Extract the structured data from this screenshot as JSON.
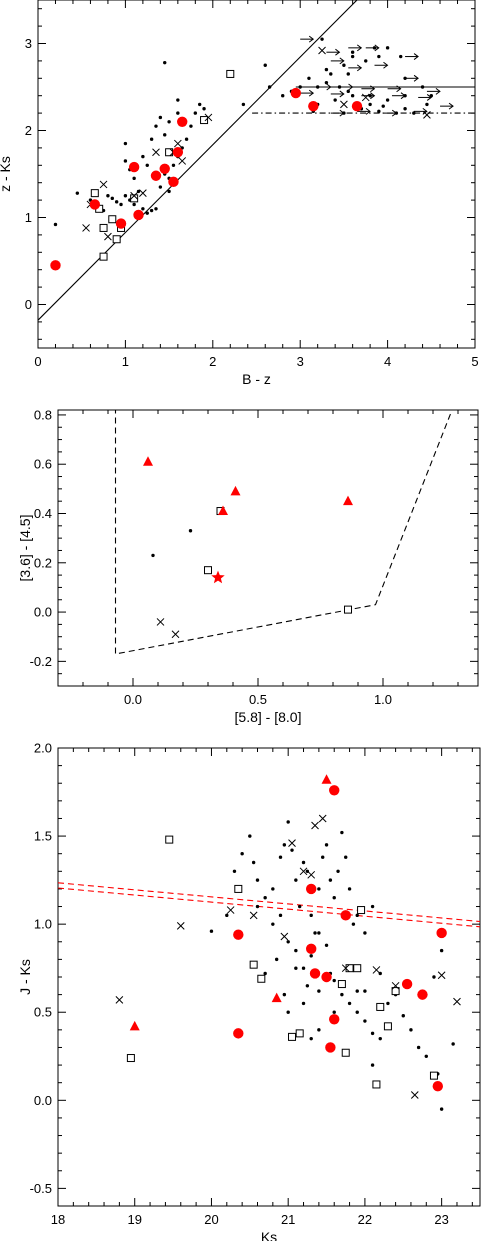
{
  "colors": {
    "ink": "#000000",
    "highlight": "#ff0000",
    "background": "#ffffff"
  },
  "chart_data": [
    {
      "type": "scatter",
      "xlabel": "B - z",
      "ylabel": "z - Ks",
      "xlim": [
        0,
        5
      ],
      "ylim": [
        -0.5,
        3.5
      ],
      "xticks": [
        "0",
        "1",
        "2",
        "3",
        "4",
        "5"
      ],
      "yticks": [
        "0",
        "1",
        "2",
        "3"
      ],
      "grid": false,
      "dots": [
        [
          0.2,
          0.92
        ],
        [
          0.45,
          1.28
        ],
        [
          0.6,
          1.2
        ],
        [
          0.7,
          1.1
        ],
        [
          0.75,
          1.08
        ],
        [
          0.8,
          1.25
        ],
        [
          0.85,
          1.22
        ],
        [
          0.9,
          1.18
        ],
        [
          0.95,
          1.15
        ],
        [
          1.0,
          1.25
        ],
        [
          1.05,
          1.2
        ],
        [
          1.1,
          1.15
        ],
        [
          1.15,
          1.3
        ],
        [
          1.2,
          1.1
        ],
        [
          1.25,
          1.05
        ],
        [
          1.3,
          1.08
        ],
        [
          1.35,
          1.1
        ],
        [
          1.4,
          1.35
        ],
        [
          1.45,
          1.5
        ],
        [
          1.5,
          1.45
        ],
        [
          1.55,
          1.6
        ],
        [
          1.6,
          1.7
        ],
        [
          1.65,
          1.8
        ],
        [
          1.7,
          1.9
        ],
        [
          1.75,
          2.05
        ],
        [
          1.8,
          2.2
        ],
        [
          1.85,
          2.3
        ],
        [
          1.9,
          2.25
        ],
        [
          1.2,
          1.7
        ],
        [
          1.3,
          1.9
        ],
        [
          1.0,
          1.85
        ],
        [
          1.5,
          2.1
        ],
        [
          1.6,
          2.2
        ],
        [
          1.45,
          1.95
        ],
        [
          1.4,
          2.15
        ],
        [
          1.35,
          2.05
        ],
        [
          1.1,
          1.45
        ],
        [
          1.05,
          1.55
        ],
        [
          1.25,
          1.6
        ],
        [
          1.5,
          1.3
        ],
        [
          1.0,
          1.65
        ],
        [
          1.45,
          2.78
        ],
        [
          1.6,
          2.35
        ],
        [
          2.6,
          2.75
        ],
        [
          2.35,
          2.3
        ],
        [
          2.65,
          2.5
        ],
        [
          2.8,
          2.4
        ],
        [
          2.9,
          2.45
        ],
        [
          3.0,
          2.5
        ],
        [
          3.1,
          2.6
        ],
        [
          3.2,
          2.5
        ],
        [
          3.3,
          2.7
        ],
        [
          3.35,
          2.65
        ],
        [
          3.45,
          2.5
        ],
        [
          3.55,
          2.45
        ],
        [
          3.4,
          2.35
        ],
        [
          3.6,
          2.4
        ],
        [
          3.3,
          2.55
        ],
        [
          3.2,
          2.3
        ],
        [
          3.15,
          2.22
        ],
        [
          3.5,
          2.2
        ],
        [
          3.7,
          2.25
        ],
        [
          3.8,
          2.3
        ],
        [
          4.0,
          2.35
        ],
        [
          4.2,
          2.4
        ],
        [
          4.1,
          2.2
        ],
        [
          3.9,
          2.22
        ],
        [
          3.55,
          2.65
        ],
        [
          3.5,
          2.75
        ],
        [
          3.25,
          3.05
        ],
        [
          3.6,
          2.9
        ],
        [
          3.9,
          2.85
        ],
        [
          4.15,
          2.85
        ],
        [
          4.2,
          2.6
        ],
        [
          4.4,
          2.5
        ],
        [
          4.5,
          2.4
        ],
        [
          4.45,
          2.3
        ],
        [
          3.6,
          2.85
        ],
        [
          3.75,
          2.8
        ],
        [
          3.85,
          2.95
        ],
        [
          4.0,
          2.95
        ],
        [
          3.8,
          2.4
        ],
        [
          4.3,
          2.2
        ],
        [
          4.2,
          2.25
        ],
        [
          3.95,
          2.28
        ]
      ],
      "squares": [
        [
          0.65,
          1.28
        ],
        [
          0.7,
          1.1
        ],
        [
          0.75,
          0.55
        ],
        [
          0.75,
          0.88
        ],
        [
          0.85,
          0.98
        ],
        [
          0.9,
          0.75
        ],
        [
          0.95,
          0.88
        ],
        [
          1.1,
          1.22
        ],
        [
          1.5,
          1.75
        ],
        [
          1.9,
          2.12
        ],
        [
          2.2,
          2.65
        ]
      ],
      "crosses": [
        [
          0.6,
          1.15
        ],
        [
          0.75,
          1.38
        ],
        [
          0.8,
          0.78
        ],
        [
          0.55,
          0.88
        ],
        [
          1.1,
          1.25
        ],
        [
          1.2,
          1.28
        ],
        [
          1.35,
          1.75
        ],
        [
          1.55,
          1.75
        ],
        [
          1.6,
          1.85
        ],
        [
          1.65,
          1.65
        ],
        [
          1.95,
          2.15
        ],
        [
          3.25,
          2.92
        ],
        [
          3.5,
          2.3
        ],
        [
          3.75,
          2.38
        ],
        [
          4.45,
          2.18
        ]
      ],
      "red_circles": [
        [
          0.2,
          0.45
        ],
        [
          0.65,
          1.15
        ],
        [
          0.95,
          0.93
        ],
        [
          1.1,
          1.58
        ],
        [
          1.15,
          1.03
        ],
        [
          1.35,
          1.48
        ],
        [
          1.45,
          1.56
        ],
        [
          1.55,
          1.41
        ],
        [
          1.6,
          1.75
        ],
        [
          1.65,
          2.1
        ],
        [
          2.95,
          2.43
        ],
        [
          3.15,
          2.28
        ],
        [
          3.65,
          2.28
        ]
      ],
      "lower_limit_arrows": [
        [
          3.0,
          3.05
        ],
        [
          3.3,
          2.9
        ],
        [
          3.55,
          2.95
        ],
        [
          3.75,
          2.95
        ],
        [
          4.2,
          2.85
        ],
        [
          3.35,
          2.8
        ],
        [
          3.55,
          2.72
        ],
        [
          3.85,
          2.75
        ],
        [
          4.2,
          2.6
        ],
        [
          3.2,
          2.5
        ],
        [
          3.45,
          2.5
        ],
        [
          3.7,
          2.48
        ],
        [
          4.0,
          2.48
        ],
        [
          4.45,
          2.45
        ],
        [
          3.35,
          2.42
        ],
        [
          3.7,
          2.4
        ],
        [
          4.05,
          2.4
        ],
        [
          4.35,
          2.38
        ],
        [
          3.0,
          2.43
        ],
        [
          4.6,
          2.28
        ],
        [
          3.35,
          2.2
        ],
        [
          3.65,
          2.22
        ],
        [
          3.95,
          2.2
        ],
        [
          4.3,
          2.22
        ]
      ],
      "lines": [
        {
          "style": "solid",
          "points": [
            [
              0,
              -0.18
            ],
            [
              3.65,
              3.5
            ]
          ]
        },
        {
          "style": "solid",
          "points": [
            [
              2.95,
              2.5
            ],
            [
              5,
              2.5
            ]
          ]
        },
        {
          "style": "dashdot",
          "points": [
            [
              2.45,
              2.2
            ],
            [
              5,
              2.2
            ]
          ]
        }
      ]
    },
    {
      "type": "scatter",
      "xlabel": "[5.8] - [8.0]",
      "ylabel": "[3.6] - [4.5]",
      "xlim": [
        -0.3,
        1.38
      ],
      "ylim": [
        -0.3,
        0.82
      ],
      "xticks": [
        "0.0",
        "0.5",
        "1.0"
      ],
      "yticks": [
        "-0.2",
        "0.0",
        "0.2",
        "0.4",
        "0.6",
        "0.8"
      ],
      "grid": false,
      "dots": [
        [
          0.08,
          0.23
        ],
        [
          0.23,
          0.33
        ]
      ],
      "squares": [
        [
          0.3,
          0.17
        ],
        [
          0.35,
          0.41
        ],
        [
          0.86,
          0.01
        ]
      ],
      "crosses": [
        [
          0.11,
          -0.04
        ],
        [
          0.17,
          -0.09
        ]
      ],
      "red_triangles": [
        [
          0.06,
          0.61
        ],
        [
          0.36,
          0.41
        ],
        [
          0.41,
          0.49
        ],
        [
          0.86,
          0.45
        ]
      ],
      "red_stars": [
        [
          0.34,
          0.14
        ]
      ],
      "lines": [
        {
          "style": "dashed",
          "points": [
            [
              -0.07,
              0.83
            ],
            [
              -0.07,
              -0.17
            ],
            [
              0.97,
              0.03
            ],
            [
              1.28,
              0.83
            ]
          ]
        }
      ]
    },
    {
      "type": "scatter",
      "xlabel": "Ks",
      "ylabel": "J - Ks",
      "xlim": [
        18,
        23.5
      ],
      "ylim": [
        -0.6,
        2.0
      ],
      "xticks": [
        "18",
        "19",
        "20",
        "21",
        "22",
        "23"
      ],
      "yticks": [
        "-0.5",
        "0.0",
        "0.5",
        "1.0",
        "1.5",
        "2.0"
      ],
      "grid": false,
      "dots": [
        [
          20.0,
          0.96
        ],
        [
          20.2,
          1.05
        ],
        [
          20.3,
          1.3
        ],
        [
          20.4,
          1.4
        ],
        [
          20.5,
          1.5
        ],
        [
          20.55,
          1.35
        ],
        [
          20.6,
          1.25
        ],
        [
          20.7,
          1.15
        ],
        [
          20.8,
          1.2
        ],
        [
          20.9,
          1.38
        ],
        [
          20.95,
          1.45
        ],
        [
          21.0,
          1.58
        ],
        [
          21.05,
          1.42
        ],
        [
          21.1,
          1.25
        ],
        [
          21.15,
          1.1
        ],
        [
          21.2,
          1.35
        ],
        [
          21.25,
          1.3
        ],
        [
          21.3,
          1.05
        ],
        [
          21.35,
          0.95
        ],
        [
          21.4,
          1.2
        ],
        [
          21.45,
          1.38
        ],
        [
          21.5,
          1.45
        ],
        [
          21.55,
          1.25
        ],
        [
          21.6,
          1.15
        ],
        [
          21.65,
          1.3
        ],
        [
          21.7,
          1.52
        ],
        [
          21.75,
          1.38
        ],
        [
          21.8,
          1.2
        ],
        [
          21.85,
          1.0
        ],
        [
          21.9,
          1.05
        ],
        [
          22.0,
          0.95
        ],
        [
          22.1,
          1.1
        ],
        [
          21.0,
          0.9
        ],
        [
          21.1,
          0.85
        ],
        [
          21.2,
          0.75
        ],
        [
          21.3,
          0.82
        ],
        [
          21.4,
          0.95
        ],
        [
          21.5,
          0.88
        ],
        [
          21.55,
          0.72
        ],
        [
          21.6,
          0.68
        ],
        [
          21.7,
          0.6
        ],
        [
          21.8,
          0.55
        ],
        [
          21.9,
          0.5
        ],
        [
          22.0,
          0.45
        ],
        [
          22.1,
          0.38
        ],
        [
          22.2,
          0.35
        ],
        [
          22.3,
          0.55
        ],
        [
          22.4,
          0.6
        ],
        [
          22.5,
          0.48
        ],
        [
          22.6,
          0.4
        ],
        [
          22.7,
          0.3
        ],
        [
          22.8,
          0.25
        ],
        [
          22.9,
          0.7
        ],
        [
          23.0,
          0.85
        ],
        [
          22.95,
          0.15
        ],
        [
          23.0,
          -0.05
        ],
        [
          23.15,
          0.32
        ],
        [
          22.1,
          0.2
        ],
        [
          21.0,
          0.5
        ],
        [
          20.95,
          0.6
        ],
        [
          21.2,
          0.55
        ],
        [
          21.25,
          0.65
        ],
        [
          20.85,
          0.8
        ],
        [
          20.7,
          0.72
        ],
        [
          20.6,
          1.1
        ],
        [
          20.9,
          1.05
        ],
        [
          21.4,
          0.62
        ],
        [
          21.9,
          0.62
        ],
        [
          22.0,
          0.62
        ],
        [
          22.2,
          0.72
        ],
        [
          21.6,
          0.5
        ],
        [
          21.4,
          0.4
        ],
        [
          21.3,
          0.35
        ],
        [
          21.1,
          0.75
        ],
        [
          20.8,
          1.0
        ]
      ],
      "squares": [
        [
          19.45,
          1.48
        ],
        [
          18.95,
          0.24
        ],
        [
          20.35,
          1.2
        ],
        [
          20.55,
          0.77
        ],
        [
          20.65,
          0.69
        ],
        [
          21.05,
          0.36
        ],
        [
          21.15,
          0.38
        ],
        [
          21.7,
          0.66
        ],
        [
          21.8,
          0.75
        ],
        [
          21.9,
          0.75
        ],
        [
          21.95,
          1.08
        ],
        [
          21.75,
          0.27
        ],
        [
          22.15,
          0.09
        ],
        [
          22.2,
          0.53
        ],
        [
          22.3,
          0.42
        ],
        [
          22.4,
          0.62
        ],
        [
          22.9,
          0.14
        ]
      ],
      "crosses": [
        [
          18.8,
          0.57
        ],
        [
          19.6,
          0.99
        ],
        [
          20.25,
          1.08
        ],
        [
          20.55,
          1.05
        ],
        [
          20.95,
          0.93
        ],
        [
          21.05,
          1.46
        ],
        [
          21.2,
          1.3
        ],
        [
          21.3,
          1.28
        ],
        [
          21.35,
          1.56
        ],
        [
          21.45,
          1.6
        ],
        [
          21.75,
          0.75
        ],
        [
          22.15,
          0.74
        ],
        [
          22.4,
          0.65
        ],
        [
          22.65,
          0.03
        ],
        [
          23.0,
          0.71
        ],
        [
          23.2,
          0.56
        ]
      ],
      "red_circles": [
        [
          20.35,
          0.94
        ],
        [
          20.35,
          0.38
        ],
        [
          21.3,
          1.2
        ],
        [
          21.3,
          0.86
        ],
        [
          21.35,
          0.72
        ],
        [
          21.5,
          0.7
        ],
        [
          21.55,
          0.3
        ],
        [
          21.6,
          0.46
        ],
        [
          21.6,
          1.76
        ],
        [
          21.75,
          1.05
        ],
        [
          22.55,
          0.66
        ],
        [
          22.75,
          0.6
        ],
        [
          22.95,
          0.08
        ],
        [
          23.0,
          0.95
        ]
      ],
      "red_triangles": [
        [
          19.0,
          0.42
        ],
        [
          20.85,
          0.58
        ],
        [
          21.5,
          1.82
        ]
      ],
      "lines": [
        {
          "style": "dashed",
          "color": "#ff0000",
          "points": [
            [
              18,
              1.235
            ],
            [
              23.5,
              1.015
            ]
          ]
        },
        {
          "style": "dashed",
          "color": "#ff0000",
          "points": [
            [
              18,
              1.205
            ],
            [
              23.5,
              0.985
            ]
          ]
        }
      ]
    }
  ]
}
